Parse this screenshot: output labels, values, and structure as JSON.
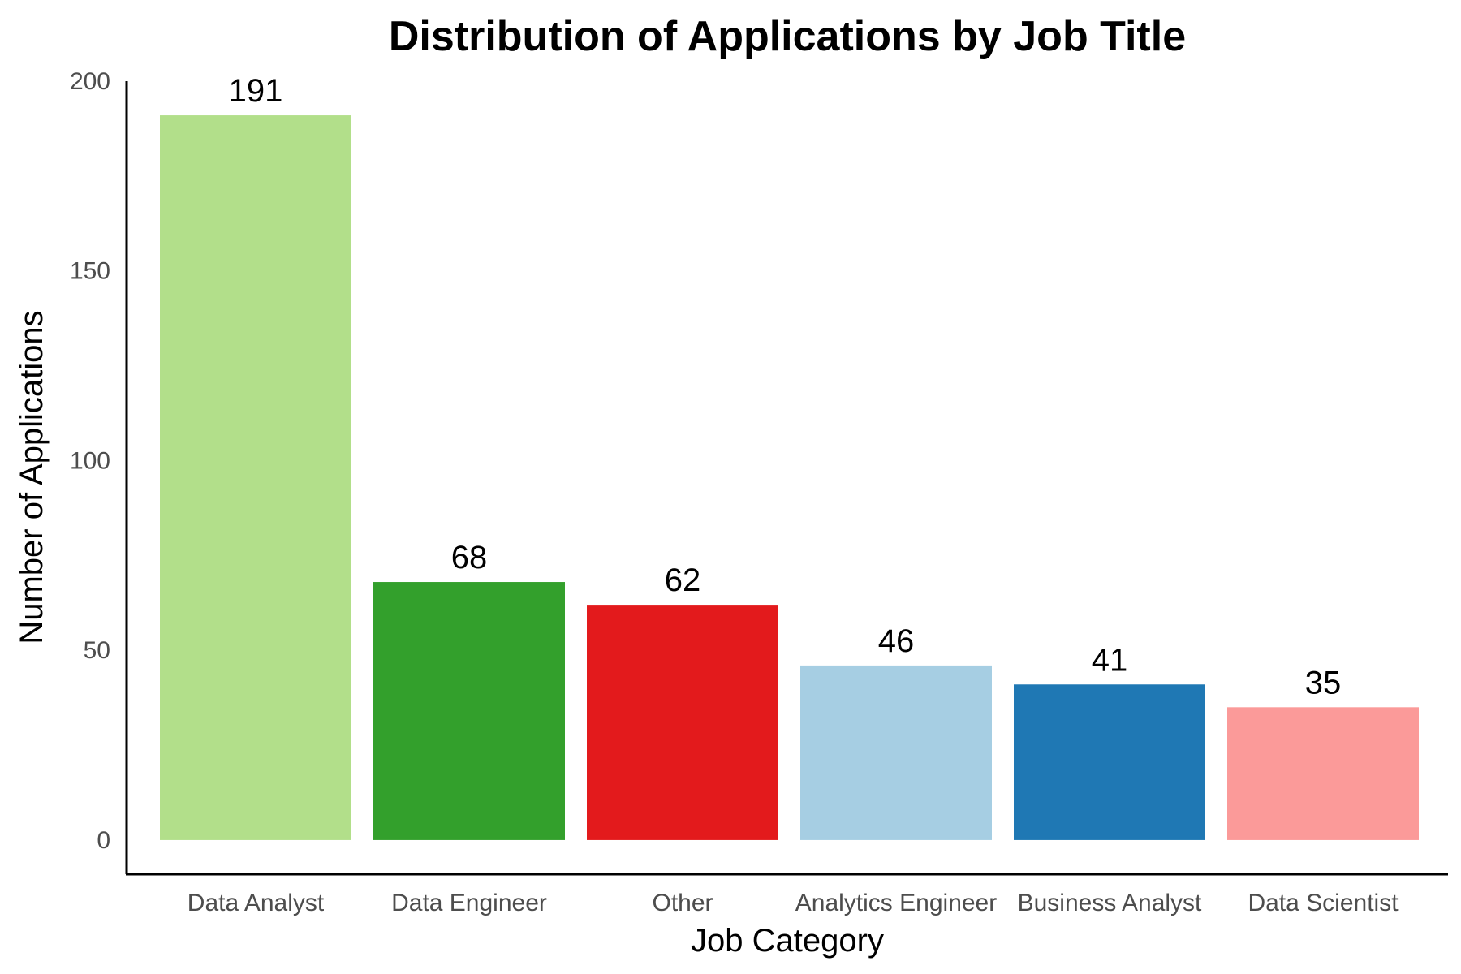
{
  "chart_data": {
    "type": "bar",
    "title": "Distribution of Applications by Job Title",
    "xlabel": "Job Category",
    "ylabel": "Number of Applications",
    "categories": [
      "Data Analyst",
      "Data Engineer",
      "Other",
      "Analytics Engineer",
      "Business Analyst",
      "Data Scientist"
    ],
    "values": [
      191,
      68,
      62,
      46,
      41,
      35
    ],
    "colors": [
      "#b2df8a",
      "#33a02c",
      "#e31a1c",
      "#a6cee3",
      "#1f78b4",
      "#fb9a99"
    ],
    "yticks": [
      0,
      50,
      100,
      150,
      200
    ],
    "ylim": [
      -9,
      200
    ],
    "grid": false,
    "legend": "none"
  }
}
